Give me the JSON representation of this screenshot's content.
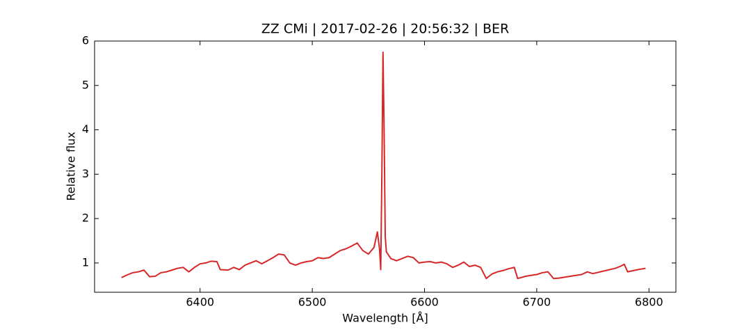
{
  "chart_data": {
    "type": "line",
    "title": "ZZ CMi | 2017-02-26 | 20:56:32 | BER",
    "x_label": "Wavelength [Å]",
    "y_label": "Relative flux",
    "xlim": [
      6306,
      6824
    ],
    "ylim": [
      0.34,
      6
    ],
    "xticks": [
      6400,
      6500,
      6600,
      6700,
      6800
    ],
    "yticks": [
      1,
      2,
      3,
      4,
      5,
      6
    ],
    "series": [
      {
        "color": "#d62728",
        "x": [
          6330,
          6335,
          6340,
          6345,
          6350,
          6355,
          6360,
          6365,
          6370,
          6375,
          6380,
          6385,
          6390,
          6395,
          6400,
          6405,
          6410,
          6415,
          6418,
          6425,
          6430,
          6435,
          6440,
          6445,
          6450,
          6455,
          6460,
          6465,
          6470,
          6475,
          6480,
          6485,
          6490,
          6495,
          6500,
          6505,
          6510,
          6515,
          6520,
          6525,
          6530,
          6535,
          6540,
          6545,
          6550,
          6555,
          6558,
          6560,
          6561,
          6562,
          6563,
          6564,
          6565,
          6566,
          6570,
          6575,
          6580,
          6585,
          6590,
          6595,
          6600,
          6605,
          6610,
          6615,
          6620,
          6625,
          6630,
          6635,
          6640,
          6645,
          6650,
          6655,
          6660,
          6665,
          6670,
          6675,
          6680,
          6683,
          6690,
          6695,
          6700,
          6705,
          6710,
          6715,
          6720,
          6730,
          6740,
          6745,
          6750,
          6760,
          6770,
          6775,
          6778,
          6781,
          6790,
          6797
        ],
        "values": [
          0.67,
          0.73,
          0.78,
          0.8,
          0.84,
          0.69,
          0.7,
          0.78,
          0.8,
          0.84,
          0.88,
          0.9,
          0.8,
          0.9,
          0.98,
          1.0,
          1.04,
          1.03,
          0.85,
          0.84,
          0.9,
          0.85,
          0.95,
          1.0,
          1.05,
          0.98,
          1.05,
          1.12,
          1.2,
          1.18,
          1.0,
          0.95,
          1.0,
          1.03,
          1.05,
          1.12,
          1.1,
          1.12,
          1.2,
          1.28,
          1.32,
          1.38,
          1.45,
          1.28,
          1.2,
          1.35,
          1.7,
          1.3,
          0.85,
          3.0,
          5.75,
          4.0,
          1.6,
          1.25,
          1.1,
          1.05,
          1.1,
          1.15,
          1.12,
          1.0,
          1.02,
          1.03,
          1.0,
          1.02,
          0.98,
          0.9,
          0.95,
          1.02,
          0.92,
          0.95,
          0.9,
          0.65,
          0.75,
          0.8,
          0.83,
          0.87,
          0.9,
          0.65,
          0.7,
          0.72,
          0.74,
          0.78,
          0.8,
          0.65,
          0.66,
          0.7,
          0.74,
          0.8,
          0.76,
          0.82,
          0.88,
          0.93,
          0.97,
          0.8,
          0.85,
          0.88
        ]
      }
    ]
  }
}
